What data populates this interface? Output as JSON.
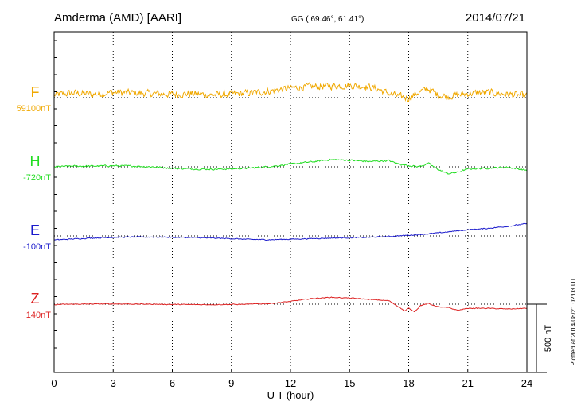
{
  "header": {
    "station": "Amderma (AMD)  [AARI]",
    "coords": "GG ( 69.46°,  61.41°)",
    "date": "2014/07/21"
  },
  "footer": {
    "plotted": "Plotted at 2014/08/21 02:03 UT",
    "scale_label": "500 nT"
  },
  "chart_data": {
    "type": "line",
    "title": "Amderma (AMD)  [AARI]",
    "xlabel": "U T (hour)",
    "ylabel": "",
    "xlim": [
      0,
      24
    ],
    "x_ticks": [
      0,
      3,
      6,
      9,
      12,
      15,
      18,
      21,
      24
    ],
    "x_tick_labels": [
      "0",
      "3",
      "6",
      "9",
      "12",
      "15",
      "18",
      "21",
      "24"
    ],
    "grid": true,
    "scale_bar_nT": 500,
    "series": [
      {
        "name": "F",
        "baseline_label": "59100nT",
        "color": "#f0a800",
        "baseline_nT": 59100,
        "noise_nT": 35,
        "x": [
          0,
          1,
          2,
          3,
          4,
          5,
          6,
          7,
          8,
          9,
          10,
          11,
          12,
          13,
          14,
          15,
          16,
          16.5,
          17,
          17.5,
          18,
          18.5,
          19,
          19.5,
          20,
          21,
          22,
          23,
          24
        ],
        "values": [
          59120,
          59135,
          59125,
          59140,
          59135,
          59130,
          59125,
          59130,
          59120,
          59125,
          59135,
          59150,
          59170,
          59180,
          59185,
          59190,
          59180,
          59160,
          59130,
          59110,
          59095,
          59140,
          59165,
          59120,
          59110,
          59130,
          59140,
          59125,
          59115
        ]
      },
      {
        "name": "H",
        "baseline_label": "-720nT",
        "color": "#22dd22",
        "baseline_nT": -720,
        "noise_nT": 8,
        "x": [
          0,
          1,
          2,
          3,
          4,
          5,
          6,
          7,
          8,
          9,
          10,
          11,
          12,
          13,
          14,
          15,
          16,
          17,
          17.5,
          18,
          18.5,
          19,
          19.5,
          20,
          20.5,
          21,
          22,
          23,
          24
        ],
        "values": [
          -720,
          -715,
          -715,
          -712,
          -715,
          -720,
          -730,
          -735,
          -738,
          -735,
          -728,
          -718,
          -700,
          -685,
          -668,
          -672,
          -682,
          -675,
          -700,
          -710,
          -720,
          -695,
          -740,
          -770,
          -760,
          -735,
          -730,
          -722,
          -745
        ]
      },
      {
        "name": "E",
        "baseline_label": "-100nT",
        "color": "#1a1acc",
        "baseline_nT": -100,
        "noise_nT": 5,
        "x": [
          0,
          1,
          2,
          3,
          4,
          5,
          6,
          7,
          8,
          9,
          10,
          11,
          12,
          13,
          14,
          15,
          16,
          17,
          18,
          19,
          20,
          21,
          22,
          23,
          24
        ],
        "values": [
          -130,
          -122,
          -115,
          -110,
          -108,
          -108,
          -110,
          -112,
          -116,
          -120,
          -126,
          -128,
          -124,
          -120,
          -116,
          -113,
          -110,
          -104,
          -95,
          -85,
          -70,
          -55,
          -45,
          -30,
          -10
        ]
      },
      {
        "name": "Z",
        "baseline_label": "140nT",
        "color": "#dd2222",
        "baseline_nT": 140,
        "noise_nT": 4,
        "x": [
          0,
          1,
          2,
          3,
          4,
          5,
          6,
          7,
          8,
          9,
          10,
          11,
          12,
          13,
          14,
          15,
          16,
          17,
          17.5,
          17.8,
          18,
          18.3,
          18.6,
          19,
          19.5,
          20,
          20.5,
          21,
          22,
          23,
          24
        ],
        "values": [
          137,
          140,
          141,
          142,
          141,
          140,
          138,
          137,
          137,
          138,
          140,
          145,
          160,
          180,
          190,
          185,
          175,
          165,
          120,
          90,
          110,
          85,
          130,
          145,
          120,
          115,
          95,
          110,
          110,
          105,
          110
        ]
      }
    ]
  }
}
